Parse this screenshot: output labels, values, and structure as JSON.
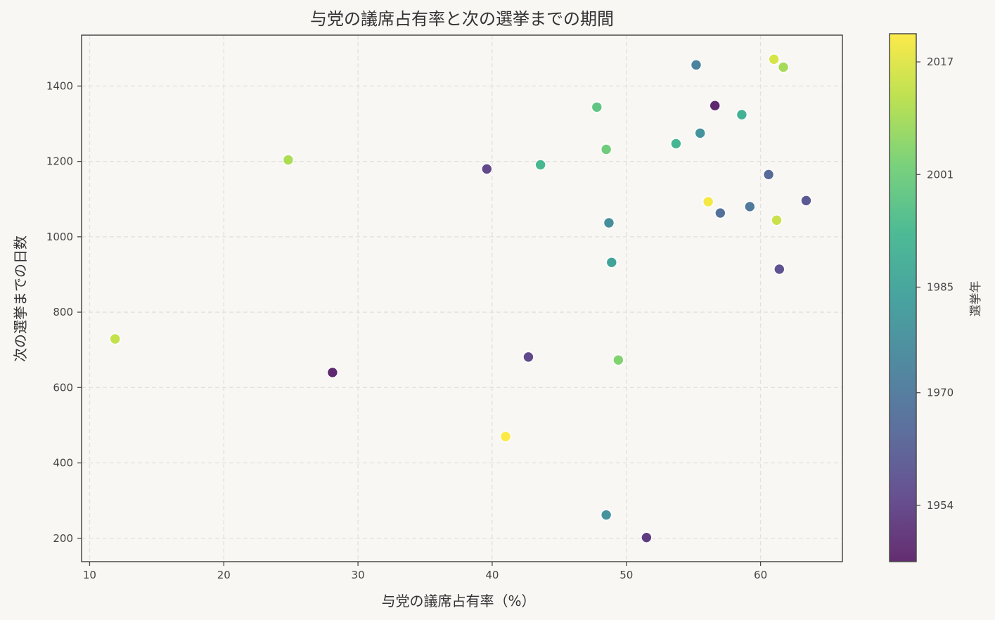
{
  "chart_data": {
    "type": "scatter",
    "title": "与党の議席占有率と次の選挙までの期間",
    "xlabel": "与党の議席占有率（%）",
    "ylabel": "次の選挙までの日数",
    "xlim": [
      9.4,
      66.1
    ],
    "ylim": [
      138,
      1535
    ],
    "xticks": [
      10,
      20,
      30,
      40,
      50,
      60
    ],
    "yticks": [
      200,
      400,
      600,
      800,
      1000,
      1200,
      1400
    ],
    "grid": true,
    "colorbar": {
      "label": "選挙年",
      "colormap": "viridis",
      "range": [
        1946,
        2021
      ],
      "ticks": [
        1954,
        1970,
        1985,
        2001,
        2017
      ]
    },
    "points": [
      {
        "x": 55.2,
        "y": 1456,
        "year": 1973
      },
      {
        "x": 61.0,
        "y": 1471,
        "year": 2016
      },
      {
        "x": 61.7,
        "y": 1450,
        "year": 2009
      },
      {
        "x": 56.6,
        "y": 1348,
        "year": 1947
      },
      {
        "x": 58.6,
        "y": 1324,
        "year": 1990
      },
      {
        "x": 55.5,
        "y": 1275,
        "year": 1979
      },
      {
        "x": 47.8,
        "y": 1344,
        "year": 1998
      },
      {
        "x": 48.5,
        "y": 1232,
        "year": 2001
      },
      {
        "x": 43.6,
        "y": 1191,
        "year": 1993
      },
      {
        "x": 53.7,
        "y": 1247,
        "year": 1992
      },
      {
        "x": 24.8,
        "y": 1204,
        "year": 2010
      },
      {
        "x": 39.6,
        "y": 1180,
        "year": 1955
      },
      {
        "x": 60.6,
        "y": 1165,
        "year": 1965
      },
      {
        "x": 56.1,
        "y": 1093,
        "year": 2020
      },
      {
        "x": 57.0,
        "y": 1063,
        "year": 1967
      },
      {
        "x": 59.2,
        "y": 1080,
        "year": 1970
      },
      {
        "x": 63.4,
        "y": 1096,
        "year": 1960
      },
      {
        "x": 61.2,
        "y": 1044,
        "year": 2014
      },
      {
        "x": 61.4,
        "y": 914,
        "year": 1958
      },
      {
        "x": 48.7,
        "y": 1037,
        "year": 1977
      },
      {
        "x": 48.9,
        "y": 932,
        "year": 1985
      },
      {
        "x": 11.9,
        "y": 729,
        "year": 2013
      },
      {
        "x": 28.1,
        "y": 640,
        "year": 1947
      },
      {
        "x": 42.7,
        "y": 681,
        "year": 1955
      },
      {
        "x": 49.4,
        "y": 673,
        "year": 2004
      },
      {
        "x": 41.0,
        "y": 470,
        "year": 2021
      },
      {
        "x": 48.5,
        "y": 262,
        "year": 1979
      },
      {
        "x": 51.5,
        "y": 202,
        "year": 1952
      }
    ]
  },
  "colors": {
    "background": "#f8f7f4",
    "frame": "#4a4a4a",
    "grid": "#e2e1de",
    "text": "#333333"
  }
}
